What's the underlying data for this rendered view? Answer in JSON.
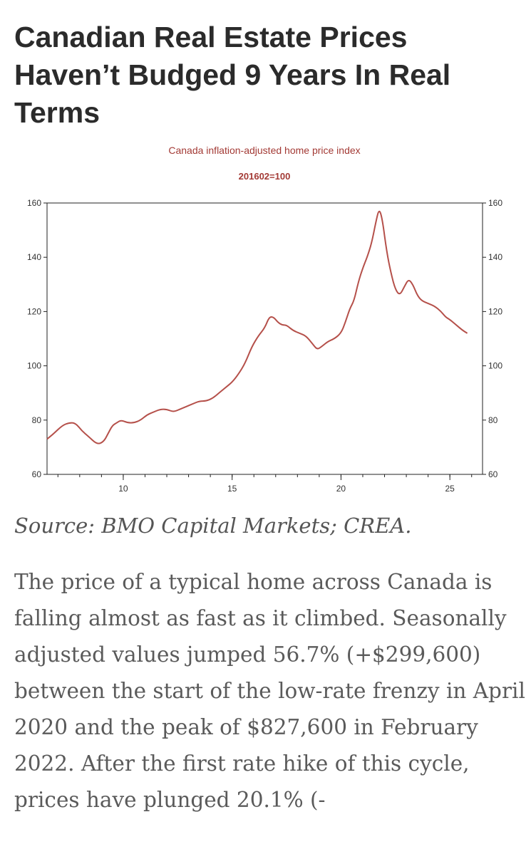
{
  "article": {
    "headline": "Canadian Real Estate Prices Haven’t Budged 9 Years In Real Terms",
    "source": "Source: BMO Capital Markets; CREA.",
    "body": "The price of a typical home across Canada is falling almost as fast as it climbed. Seasonally adjusted values jumped 56.7% (+$299,600) between the start of the low-rate frenzy in April 2020 and the peak of $827,600 in February 2022. After the first rate hike of this cycle, prices have plunged 20.1% (-"
  },
  "chart_data": {
    "type": "line",
    "title": "Canada inflation-adjusted home price index",
    "subtitle": "201602=100",
    "xlabel": "",
    "ylabel": "",
    "xlim": [
      2006.5,
      2026.5
    ],
    "ylim": [
      60,
      160
    ],
    "x_ticks": [
      10,
      15,
      20,
      25
    ],
    "y_ticks": [
      60,
      80,
      100,
      120,
      140,
      160
    ],
    "grid": false,
    "line_color": "#b5504a",
    "series": [
      {
        "x": [
          2006.5,
          2006.8,
          2007.2,
          2007.5,
          2007.8,
          2008.1,
          2008.4,
          2008.8,
          2009.1,
          2009.3,
          2009.5,
          2009.7,
          2009.9,
          2010.2,
          2010.5,
          2010.8,
          2011.1,
          2011.4,
          2011.7,
          2012.0,
          2012.3,
          2012.6,
          2012.9,
          2013.2,
          2013.5,
          2013.8,
          2014.1,
          2014.4,
          2014.7,
          2015.0,
          2015.3,
          2015.6,
          2015.9,
          2016.2,
          2016.5,
          2016.7,
          2016.9,
          2017.1,
          2017.3,
          2017.5,
          2017.8,
          2018.1,
          2018.4,
          2018.7,
          2018.9,
          2019.1,
          2019.4,
          2019.7,
          2020.0,
          2020.2,
          2020.4,
          2020.6,
          2020.8,
          2021.0,
          2021.2,
          2021.4,
          2021.6,
          2021.75,
          2021.9,
          2022.1,
          2022.3,
          2022.5,
          2022.7,
          2022.9,
          2023.1,
          2023.3,
          2023.5,
          2023.7,
          2024.0,
          2024.3,
          2024.6,
          2024.8,
          2025.0,
          2025.3,
          2025.6,
          2025.8
        ],
        "y": [
          73,
          75,
          78,
          79,
          79,
          76,
          74,
          71,
          72,
          75,
          78,
          79,
          80,
          79,
          79,
          80,
          82,
          83,
          84,
          84,
          83,
          84,
          85,
          86,
          87,
          87,
          88,
          90,
          92,
          94,
          97,
          101,
          107,
          111,
          114,
          118,
          118,
          116,
          115,
          115,
          113,
          112,
          111,
          108,
          106,
          107,
          109,
          110,
          112,
          116,
          121,
          124,
          131,
          136,
          140,
          145,
          153,
          158,
          154,
          142,
          134,
          128,
          126,
          129,
          132,
          130,
          126,
          124,
          123,
          122,
          120,
          118,
          117,
          115,
          113,
          112
        ]
      }
    ]
  }
}
